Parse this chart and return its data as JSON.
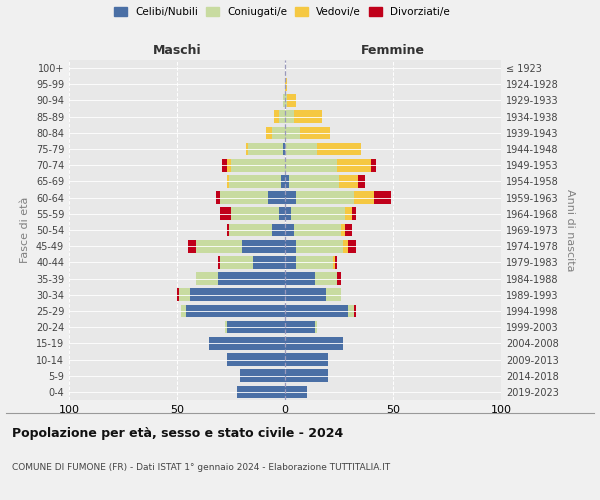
{
  "age_groups": [
    "0-4",
    "5-9",
    "10-14",
    "15-19",
    "20-24",
    "25-29",
    "30-34",
    "35-39",
    "40-44",
    "45-49",
    "50-54",
    "55-59",
    "60-64",
    "65-69",
    "70-74",
    "75-79",
    "80-84",
    "85-89",
    "90-94",
    "95-99",
    "100+"
  ],
  "birth_years": [
    "2019-2023",
    "2014-2018",
    "2009-2013",
    "2004-2008",
    "1999-2003",
    "1994-1998",
    "1989-1993",
    "1984-1988",
    "1979-1983",
    "1974-1978",
    "1969-1973",
    "1964-1968",
    "1959-1963",
    "1954-1958",
    "1949-1953",
    "1944-1948",
    "1939-1943",
    "1934-1938",
    "1929-1933",
    "1924-1928",
    "≤ 1923"
  ],
  "maschi": {
    "celibi": [
      22,
      21,
      27,
      35,
      27,
      46,
      44,
      31,
      15,
      20,
      6,
      3,
      8,
      2,
      0,
      1,
      0,
      0,
      0,
      0,
      0
    ],
    "coniugati": [
      0,
      0,
      0,
      0,
      1,
      2,
      5,
      10,
      15,
      21,
      20,
      22,
      22,
      24,
      25,
      16,
      6,
      3,
      1,
      0,
      0
    ],
    "vedovi": [
      0,
      0,
      0,
      0,
      0,
      0,
      0,
      0,
      0,
      0,
      0,
      0,
      0,
      1,
      2,
      1,
      3,
      2,
      0,
      0,
      0
    ],
    "divorziati": [
      0,
      0,
      0,
      0,
      0,
      0,
      1,
      0,
      1,
      4,
      1,
      5,
      2,
      0,
      2,
      0,
      0,
      0,
      0,
      0,
      0
    ]
  },
  "femmine": {
    "nubili": [
      10,
      20,
      20,
      27,
      14,
      29,
      19,
      14,
      5,
      5,
      4,
      3,
      5,
      2,
      0,
      0,
      0,
      0,
      0,
      0,
      0
    ],
    "coniugate": [
      0,
      0,
      0,
      0,
      1,
      3,
      7,
      10,
      17,
      22,
      22,
      25,
      27,
      23,
      24,
      15,
      7,
      4,
      1,
      0,
      0
    ],
    "vedove": [
      0,
      0,
      0,
      0,
      0,
      0,
      0,
      0,
      1,
      2,
      2,
      3,
      9,
      9,
      16,
      20,
      14,
      13,
      4,
      1,
      0
    ],
    "divorziate": [
      0,
      0,
      0,
      0,
      0,
      1,
      0,
      2,
      1,
      4,
      3,
      2,
      8,
      3,
      2,
      0,
      0,
      0,
      0,
      0,
      0
    ]
  },
  "colors": {
    "celibi": "#4a6fa5",
    "coniugati": "#c8dba0",
    "vedovi": "#f5c842",
    "divorziati": "#c0001a"
  },
  "xlim": 100,
  "title": "Popolazione per età, sesso e stato civile - 2024",
  "subtitle": "COMUNE DI FUMONE (FR) - Dati ISTAT 1° gennaio 2024 - Elaborazione TUTTITALIA.IT",
  "ylabel_left": "Fasce di età",
  "ylabel_right": "Anni di nascita",
  "maschi_label": "Maschi",
  "femmine_label": "Femmine",
  "legend_labels": [
    "Celibi/Nubili",
    "Coniugati/e",
    "Vedovi/e",
    "Divorziati/e"
  ],
  "bg_color": "#f0f0f0",
  "plot_bg": "#e8e8e8"
}
